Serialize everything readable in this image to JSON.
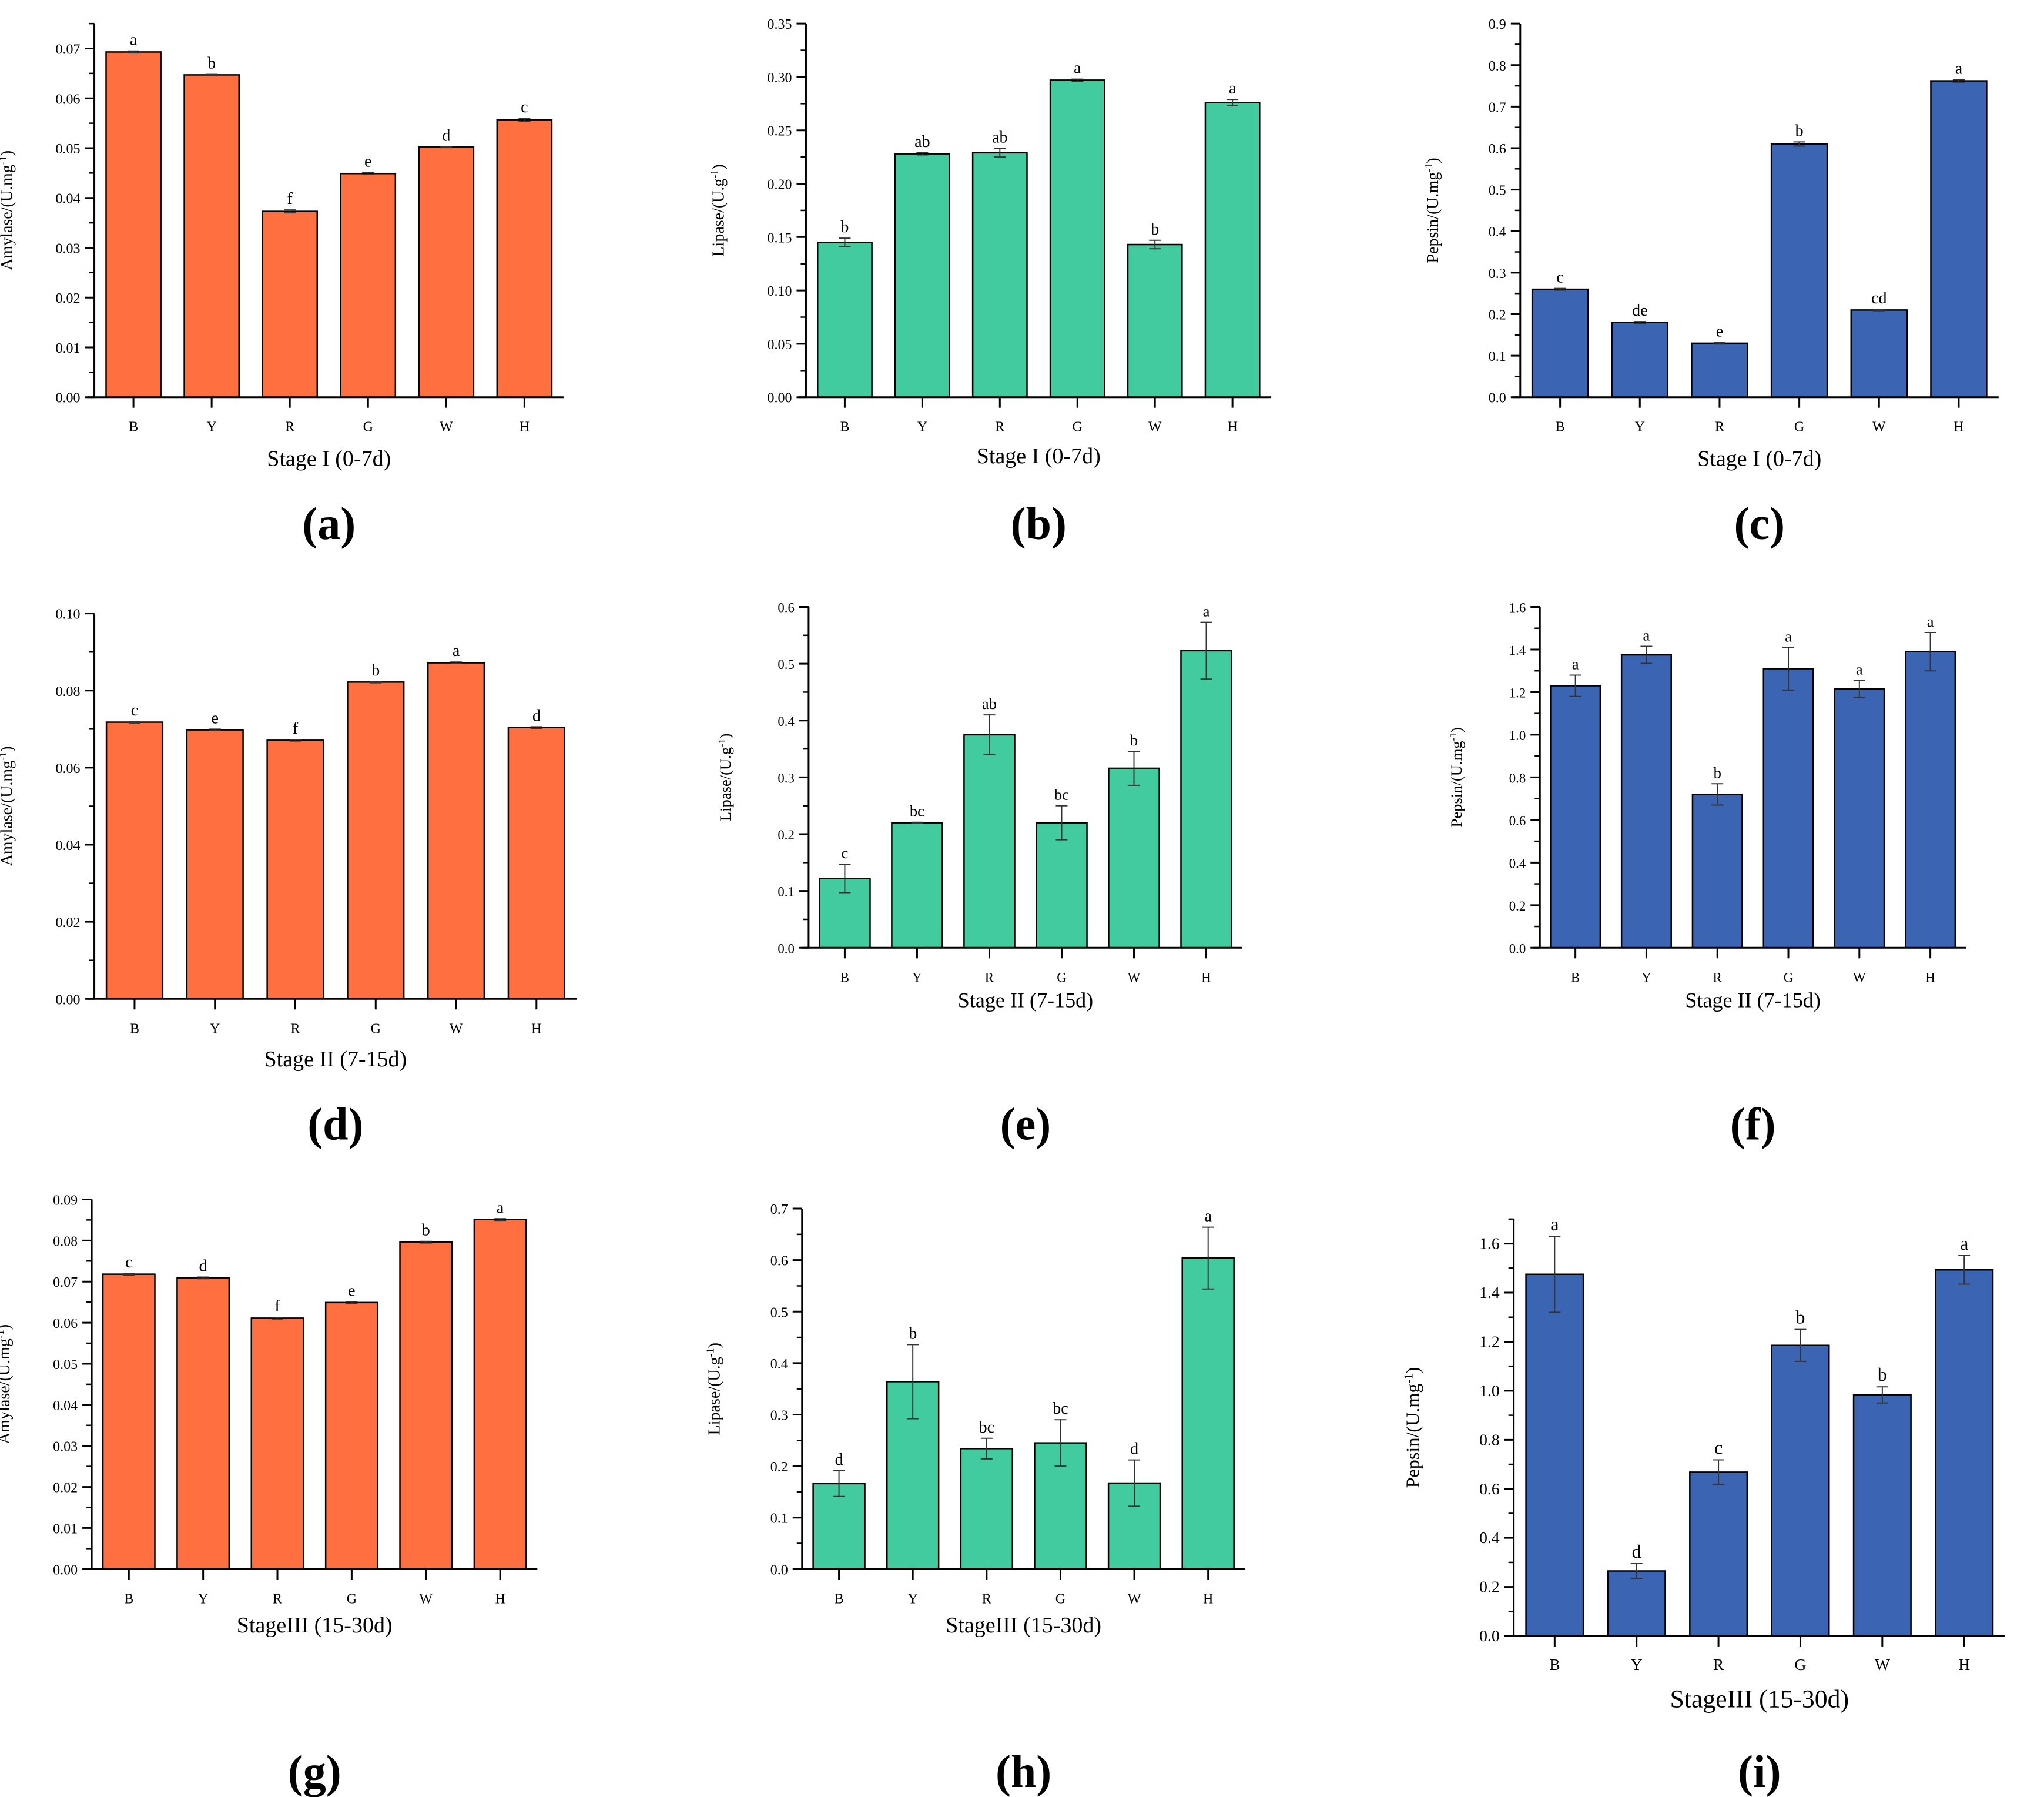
{
  "colors": {
    "amylase": "#FF6F3F",
    "lipase": "#43CBA0",
    "pepsin": "#3B64B3"
  },
  "chart_data": [
    {
      "panel": "(a)",
      "type": "bar",
      "categories": [
        "B",
        "Y",
        "R",
        "G",
        "W",
        "H"
      ],
      "values": [
        0.0693,
        0.0647,
        0.0373,
        0.0449,
        0.0502,
        0.0557
      ],
      "errors": [
        0.0002,
        0.0001,
        0.0003,
        0.0002,
        0.0001,
        0.0003
      ],
      "letters": [
        "a",
        "b",
        "f",
        "e",
        "d",
        "c"
      ],
      "ylabel": "Amylase/(U.mg",
      "ylabel_sup": "-1",
      "ylabel_end": ")",
      "xlabel": "Stage I (0-7d)",
      "ylim": [
        0,
        0.075
      ],
      "yticks": [
        "0.00",
        "0.01",
        "0.02",
        "0.03",
        "0.04",
        "0.05",
        "0.06",
        "0.07"
      ],
      "ystep": 0.01,
      "color": "amylase"
    },
    {
      "panel": "(b)",
      "type": "bar",
      "categories": [
        "B",
        "Y",
        "R",
        "G",
        "W",
        "H"
      ],
      "values": [
        0.145,
        0.228,
        0.229,
        0.297,
        0.143,
        0.276
      ],
      "errors": [
        0.004,
        0.001,
        0.004,
        0.001,
        0.004,
        0.003
      ],
      "letters": [
        "b",
        "ab",
        "ab",
        "a",
        "b",
        "a"
      ],
      "ylabel": "Lipase/(U.g",
      "ylabel_sup": "-1",
      "ylabel_end": ")",
      "xlabel": "Stage I (0-7d)",
      "ylim": [
        0,
        0.35
      ],
      "yticks": [
        "0.00",
        "0.05",
        "0.10",
        "0.15",
        "0.20",
        "0.25",
        "0.30",
        "0.35"
      ],
      "ystep": 0.05,
      "color": "lipase"
    },
    {
      "panel": "(c)",
      "type": "bar",
      "categories": [
        "B",
        "Y",
        "R",
        "G",
        "W",
        "H"
      ],
      "values": [
        0.26,
        0.18,
        0.13,
        0.61,
        0.21,
        0.762
      ],
      "errors": [
        0.002,
        0.002,
        0.002,
        0.005,
        0.002,
        0.003
      ],
      "letters": [
        "c",
        "de",
        "e",
        "b",
        "cd",
        "a"
      ],
      "ylabel": "Pepsin/(U.mg",
      "ylabel_sup": "-1",
      "ylabel_end": ")",
      "xlabel": "Stage I (0-7d)",
      "ylim": [
        0,
        0.9
      ],
      "yticks": [
        "0.0",
        "0.1",
        "0.2",
        "0.3",
        "0.4",
        "0.5",
        "0.6",
        "0.7",
        "0.8",
        "0.9"
      ],
      "ystep": 0.1,
      "color": "pepsin"
    },
    {
      "panel": "(d)",
      "type": "bar",
      "categories": [
        "B",
        "Y",
        "R",
        "G",
        "W",
        "H"
      ],
      "values": [
        0.0718,
        0.0698,
        0.0671,
        0.0822,
        0.0872,
        0.0704
      ],
      "errors": [
        0.0002,
        0.0002,
        0.0002,
        0.0002,
        0.0002,
        0.0002
      ],
      "letters": [
        "c",
        "e",
        "f",
        "b",
        "a",
        "d"
      ],
      "ylabel": "Amylase/(U.mg",
      "ylabel_sup": "-1",
      "ylabel_end": ")",
      "xlabel": "Stage II (7-15d)",
      "ylim": [
        0,
        0.1
      ],
      "yticks": [
        "0.00",
        "0.02",
        "0.04",
        "0.06",
        "0.08",
        "0.10"
      ],
      "ystep": 0.02,
      "color": "amylase"
    },
    {
      "panel": "(e)",
      "type": "bar",
      "categories": [
        "B",
        "Y",
        "R",
        "G",
        "W",
        "H"
      ],
      "values": [
        0.122,
        0.22,
        0.375,
        0.22,
        0.316,
        0.523
      ],
      "errors": [
        0.025,
        0.001,
        0.035,
        0.03,
        0.03,
        0.05
      ],
      "letters": [
        "c",
        "bc",
        "ab",
        "bc",
        "b",
        "a"
      ],
      "ylabel": "Lipase/(U.g",
      "ylabel_sup": "-1",
      "ylabel_end": ")",
      "xlabel": "Stage II (7-15d)",
      "ylim": [
        0,
        0.6
      ],
      "yticks": [
        "0.0",
        "0.1",
        "0.2",
        "0.3",
        "0.4",
        "0.5",
        "0.6"
      ],
      "ystep": 0.1,
      "color": "lipase"
    },
    {
      "panel": "(f)",
      "type": "bar",
      "categories": [
        "B",
        "Y",
        "R",
        "G",
        "W",
        "H"
      ],
      "values": [
        1.23,
        1.375,
        0.72,
        1.31,
        1.215,
        1.39
      ],
      "errors": [
        0.05,
        0.04,
        0.05,
        0.1,
        0.04,
        0.09
      ],
      "letters": [
        "a",
        "a",
        "b",
        "a",
        "a",
        "a"
      ],
      "ylabel": "Pepsin/(U.mg",
      "ylabel_sup": "-1",
      "ylabel_end": ")",
      "xlabel": "Stage II (7-15d)",
      "ylim": [
        0,
        1.6
      ],
      "yticks": [
        "0.0",
        "0.2",
        "0.4",
        "0.6",
        "0.8",
        "1.0",
        "1.2",
        "1.4",
        "1.6"
      ],
      "ystep": 0.2,
      "color": "pepsin"
    },
    {
      "panel": "(g)",
      "type": "bar",
      "categories": [
        "B",
        "Y",
        "R",
        "G",
        "W",
        "H"
      ],
      "values": [
        0.0718,
        0.0709,
        0.0611,
        0.0649,
        0.0796,
        0.0851
      ],
      "errors": [
        0.0002,
        0.0002,
        0.0002,
        0.0002,
        0.0002,
        0.0002
      ],
      "letters": [
        "c",
        "d",
        "f",
        "e",
        "b",
        "a"
      ],
      "ylabel": "Amylase/(U.mg",
      "ylabel_sup": "-1",
      "ylabel_end": ")",
      "xlabel": "StageIII (15-30d)",
      "ylim": [
        0,
        0.09
      ],
      "yticks": [
        "0.00",
        "0.01",
        "0.02",
        "0.03",
        "0.04",
        "0.05",
        "0.06",
        "0.07",
        "0.08",
        "0.09"
      ],
      "ystep": 0.01,
      "color": "amylase"
    },
    {
      "panel": "(h)",
      "type": "bar",
      "categories": [
        "B",
        "Y",
        "R",
        "G",
        "W",
        "H"
      ],
      "values": [
        0.166,
        0.364,
        0.234,
        0.245,
        0.167,
        0.604
      ],
      "errors": [
        0.025,
        0.072,
        0.02,
        0.045,
        0.045,
        0.06
      ],
      "letters": [
        "d",
        "b",
        "bc",
        "bc",
        "d",
        "a"
      ],
      "ylabel": "Lipase/(U.g",
      "ylabel_sup": "-1",
      "ylabel_end": ")",
      "xlabel": "StageIII (15-30d)",
      "ylim": [
        0,
        0.7
      ],
      "yticks": [
        "0.0",
        "0.1",
        "0.2",
        "0.3",
        "0.4",
        "0.5",
        "0.6",
        "0.7"
      ],
      "ystep": 0.1,
      "color": "lipase"
    },
    {
      "panel": "(i)",
      "type": "bar",
      "categories": [
        "B",
        "Y",
        "R",
        "G",
        "W",
        "H"
      ],
      "values": [
        1.475,
        0.265,
        0.668,
        1.185,
        0.983,
        1.493
      ],
      "errors": [
        0.155,
        0.03,
        0.05,
        0.065,
        0.033,
        0.058
      ],
      "letters": [
        "a",
        "d",
        "c",
        "b",
        "b",
        "a"
      ],
      "ylabel": "Pepsin/(U.mg",
      "ylabel_sup": "-1",
      "ylabel_end": ")",
      "xlabel": "StageIII (15-30d)",
      "ylim": [
        0,
        1.7
      ],
      "yticks": [
        "0.0",
        "0.2",
        "0.4",
        "0.6",
        "0.8",
        "1.0",
        "1.2",
        "1.4",
        "1.6"
      ],
      "ystep": 0.2,
      "color": "pepsin"
    }
  ]
}
